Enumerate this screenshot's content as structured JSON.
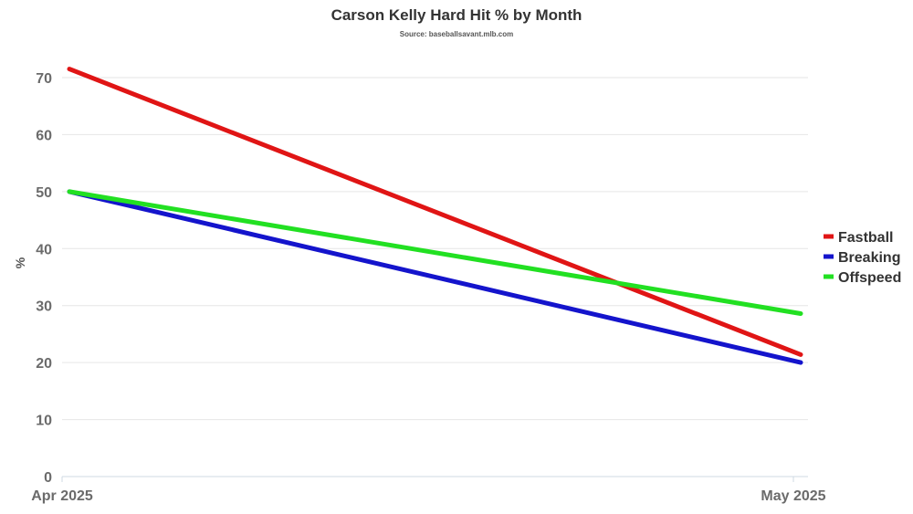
{
  "chart_data": {
    "type": "line",
    "title": "Carson Kelly Hard Hit % by Month",
    "subtitle": "Source: baseballsavant.mlb.com",
    "ylabel": "%",
    "xlabel": "",
    "x": [
      "Apr 2025",
      "May 2025"
    ],
    "ylim": [
      0,
      70
    ],
    "yticks": [
      0,
      10,
      20,
      30,
      40,
      50,
      60,
      70
    ],
    "grid": true,
    "legend_position": "right",
    "series": [
      {
        "name": "Fastball",
        "color": "#e01515",
        "values": [
          71.5,
          21.4
        ]
      },
      {
        "name": "Breaking",
        "color": "#1414cc",
        "values": [
          50.0,
          20.0
        ]
      },
      {
        "name": "Offspeed",
        "color": "#22e022",
        "values": [
          50.0,
          28.6
        ]
      }
    ]
  }
}
